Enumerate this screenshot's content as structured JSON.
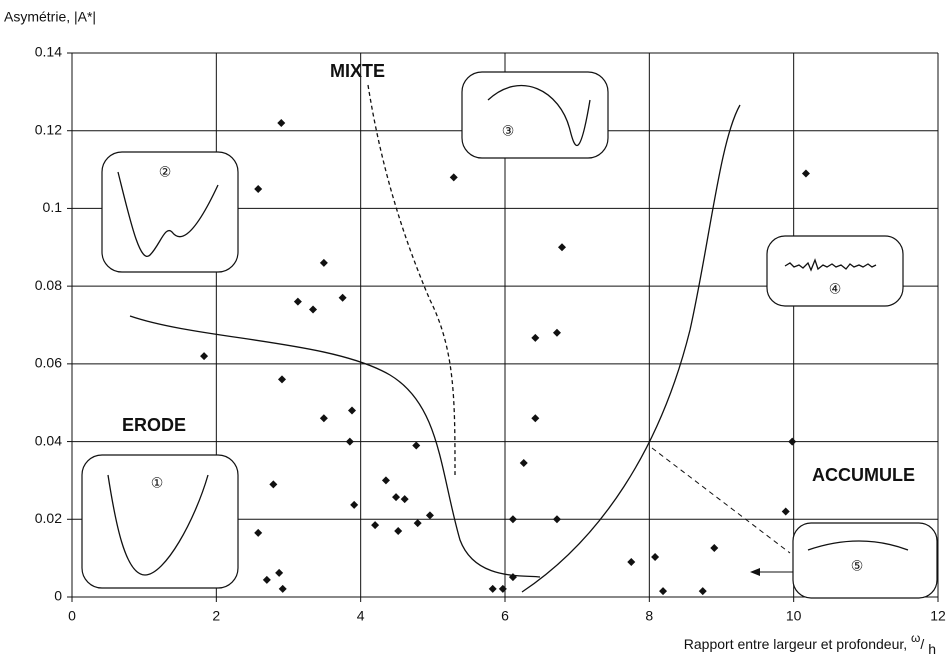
{
  "chart_data": {
    "type": "scatter",
    "y_label": "Asymétrie, |A*|",
    "x_label": [
      "Rapport entre largeur et profondeur, ",
      "ω",
      "/ ",
      "h"
    ],
    "annotations": {
      "mixte": "MIXTE",
      "erode": "ERODE",
      "accumule": "ACCUMULE"
    },
    "shape_labels": [
      "①",
      "②",
      "③",
      "④",
      "⑤"
    ],
    "color": "#111111",
    "xlim": [
      0,
      12
    ],
    "xticks": [
      0,
      2,
      4,
      6,
      8,
      10,
      12
    ],
    "ylim": [
      0,
      0.14
    ],
    "yticks": [
      0,
      0.02,
      0.04,
      0.06,
      0.08,
      0.1,
      0.12,
      0.14
    ],
    "grid": true,
    "x": [
      1.83,
      2.9,
      2.58,
      3.49,
      3.13,
      3.34,
      3.75,
      2.91,
      3.49,
      3.88,
      3.85,
      2.79,
      2.58,
      3.91,
      4.35,
      4.2,
      4.49,
      4.61,
      4.52,
      4.79,
      4.96,
      4.77,
      5.29,
      2.7,
      2.87,
      2.92,
      5.83,
      5.97,
      6.11,
      6.11,
      6.26,
      6.42,
      6.42,
      6.79,
      6.72,
      6.72,
      7.75,
      8.08,
      8.19,
      8.74,
      8.9,
      9.89,
      9.98,
      10.17
    ],
    "values": [
      0.062,
      0.122,
      0.105,
      0.086,
      0.076,
      0.074,
      0.077,
      0.056,
      0.046,
      0.048,
      0.04,
      0.029,
      0.0165,
      0.0237,
      0.03,
      0.0185,
      0.0257,
      0.0252,
      0.017,
      0.019,
      0.021,
      0.039,
      0.108,
      0.0044,
      0.0062,
      0.0021,
      0.0021,
      0.0021,
      0.0051,
      0.02,
      0.0345,
      0.0667,
      0.046,
      0.09,
      0.068,
      0.02,
      0.009,
      0.0103,
      0.0015,
      0.0015,
      0.0126,
      0.022,
      0.04,
      0.109
    ]
  }
}
